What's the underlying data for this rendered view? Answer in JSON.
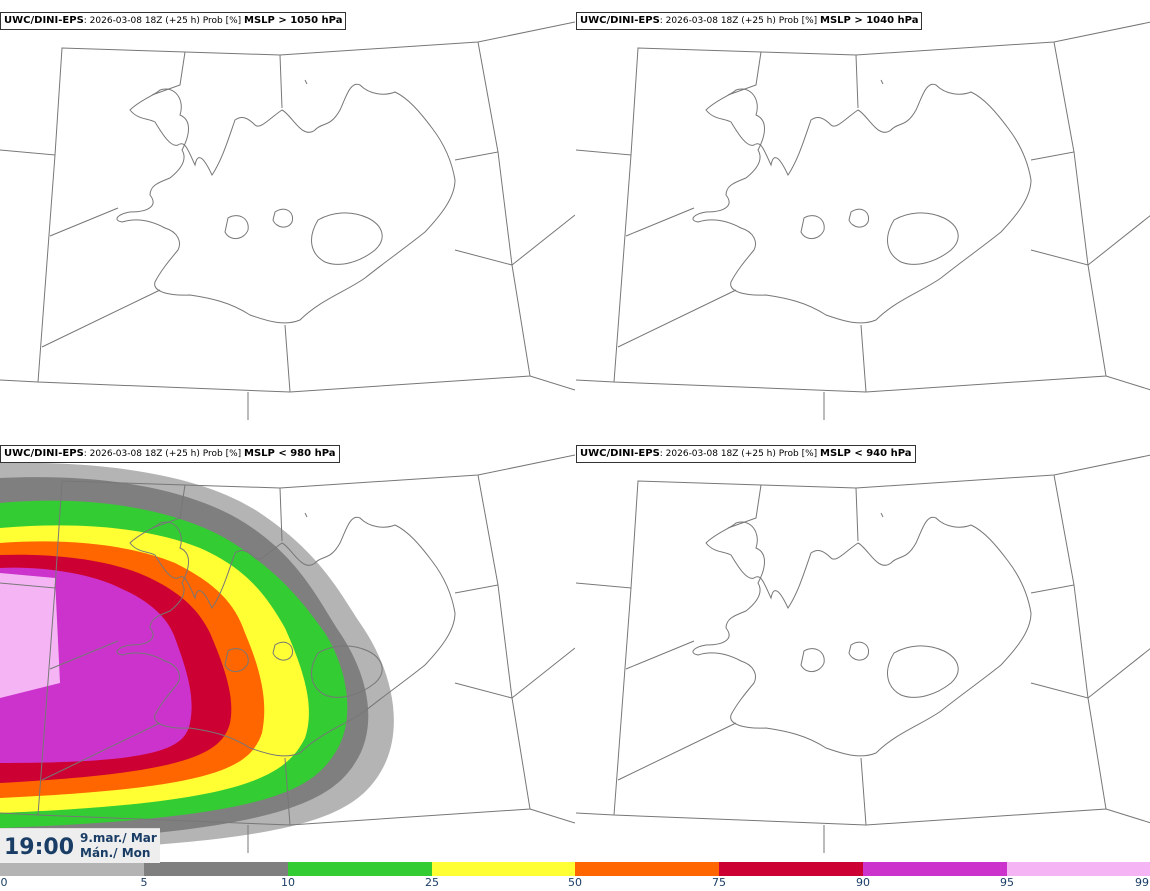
{
  "panels": [
    {
      "model": "UWC/DINI-EPS",
      "meta": ": 2026-03-08 18Z (+25 h) Prob [%] ",
      "threshold": "MSLP > 1050 hPa"
    },
    {
      "model": "UWC/DINI-EPS",
      "meta": ": 2026-03-08 18Z (+25 h) Prob [%] ",
      "threshold": "MSLP > 1040 hPa"
    },
    {
      "model": "UWC/DINI-EPS",
      "meta": ": 2026-03-08 18Z (+25 h) Prob [%] ",
      "threshold": "MSLP < 980 hPa"
    },
    {
      "model": "UWC/DINI-EPS",
      "meta": ": 2026-03-08 18Z (+25 h) Prob [%] ",
      "threshold": "MSLP < 940 hPa"
    }
  ],
  "valid_time": {
    "time": "19:00",
    "date_line1": "9.mar./ Mar",
    "date_line2": "Mán./ Mon"
  },
  "colorbar": {
    "ticks": [
      "0",
      "5",
      "10",
      "25",
      "50",
      "75",
      "90",
      "95",
      "99"
    ],
    "colors": [
      "#ffffff",
      "#b4b4b4",
      "#7f7f7f",
      "#33cc33",
      "#ffff33",
      "#ff6600",
      "#cc0033",
      "#cc33cc",
      "#f5b5f5"
    ]
  }
}
